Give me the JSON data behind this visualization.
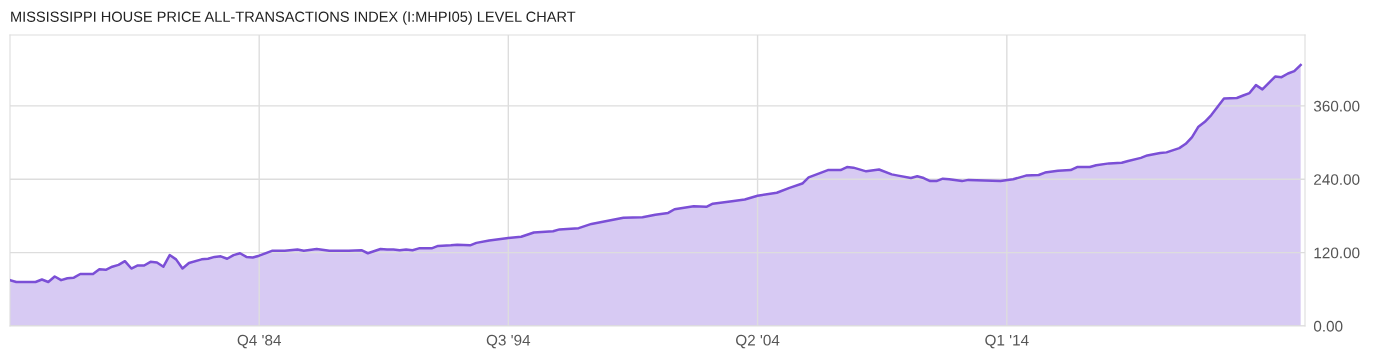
{
  "chart_data": {
    "type": "area",
    "title": "MISSISSIPPI HOUSE PRICE ALL-TRANSACTIONS INDEX (I:MHPI05) LEVEL CHART",
    "series": [
      {
        "color": "#7b4fd6",
        "x": [
          "1975-01",
          "1975-04",
          "1976-01",
          "1976-04",
          "1976-07",
          "1976-10",
          "1977-01",
          "1977-04",
          "1977-07",
          "1977-10",
          "1978-04",
          "1978-07",
          "1978-10",
          "1979-01",
          "1979-04",
          "1979-07",
          "1979-10",
          "1980-01",
          "1980-04",
          "1980-07",
          "1980-10",
          "1981-01",
          "1981-04",
          "1981-07",
          "1981-10",
          "1982-01",
          "1982-07",
          "1982-10",
          "1983-01",
          "1983-04",
          "1983-07",
          "1983-10",
          "1984-01",
          "1984-04",
          "1984-07",
          "1984-10",
          "1985-04",
          "1985-10",
          "1986-04",
          "1986-07",
          "1987-01",
          "1987-07",
          "1988-04",
          "1988-10",
          "1989-01",
          "1989-07",
          "1989-10",
          "1990-01",
          "1990-04",
          "1990-07",
          "1990-10",
          "1991-01",
          "1991-07",
          "1991-10",
          "1992-04",
          "1992-07",
          "1993-01",
          "1993-04",
          "1993-10",
          "1994-07",
          "1995-01",
          "1995-07",
          "1996-04",
          "1996-07",
          "1997-04",
          "1997-10",
          "1998-04",
          "1999-01",
          "1999-10",
          "2000-04",
          "2000-10",
          "2001-01",
          "2001-10",
          "2002-04",
          "2002-07",
          "2003-04",
          "2003-10",
          "2004-04",
          "2005-01",
          "2005-07",
          "2006-01",
          "2006-04",
          "2007-01",
          "2007-07",
          "2007-10",
          "2008-01",
          "2008-07",
          "2009-01",
          "2009-07",
          "2009-10",
          "2010-04",
          "2010-07",
          "2010-10",
          "2011-01",
          "2011-04",
          "2011-07",
          "2011-10",
          "2012-04",
          "2012-07",
          "2013-10",
          "2014-04",
          "2014-10",
          "2015-04",
          "2015-07",
          "2016-01",
          "2016-07",
          "2016-10",
          "2017-04",
          "2017-07",
          "2018-01",
          "2018-07",
          "2018-10",
          "2019-04",
          "2019-07",
          "2020-01",
          "2020-04",
          "2020-10",
          "2021-01",
          "2021-04",
          "2021-07",
          "2021-10",
          "2022-01",
          "2022-07",
          "2023-01",
          "2023-04",
          "2023-07",
          "2023-10",
          "2024-01",
          "2024-07",
          "2024-10",
          "2025-01",
          "2025-04",
          "2025-07"
        ],
        "values": [
          75,
          72,
          72,
          76,
          72,
          81,
          75,
          78,
          79,
          85,
          85,
          93,
          92,
          97,
          100,
          106,
          94,
          99,
          99,
          105,
          104,
          97,
          116,
          109,
          94,
          103,
          109,
          110,
          113,
          114,
          110,
          116,
          119,
          113,
          112,
          115,
          123,
          123,
          125,
          123,
          126,
          123,
          123,
          124,
          119,
          126,
          125,
          125,
          124,
          125,
          124,
          127,
          127,
          131,
          132,
          133,
          132,
          136,
          140,
          144,
          146,
          153,
          155,
          158,
          160,
          167,
          171,
          177,
          178,
          182,
          185,
          191,
          196,
          195,
          200,
          204,
          207,
          213,
          218,
          226,
          233,
          243,
          255,
          255,
          260,
          259,
          253,
          256,
          248,
          246,
          242,
          245,
          242,
          237,
          237,
          241,
          240,
          237,
          239,
          237,
          240,
          246,
          247,
          251,
          254,
          255,
          260,
          260,
          263,
          266,
          267,
          270,
          275,
          279,
          283,
          284,
          291,
          298,
          309,
          326,
          334,
          345,
          372,
          373,
          377,
          381,
          394,
          387,
          408,
          407,
          413,
          417,
          427
        ]
      }
    ],
    "xlim": [
      "1975-01",
      "2025-09"
    ],
    "xticks": [
      {
        "value": "1984-10",
        "label": "Q4 '84"
      },
      {
        "value": "1994-07",
        "label": "Q3 '94"
      },
      {
        "value": "2004-04",
        "label": "Q2 '04"
      },
      {
        "value": "2014-01",
        "label": "Q1 '14"
      }
    ],
    "ylim": [
      0,
      476
    ],
    "yticks": [
      {
        "value": 0,
        "label": "0.00"
      },
      {
        "value": 120,
        "label": "120.00"
      },
      {
        "value": 240,
        "label": "240.00"
      },
      {
        "value": 360,
        "label": "360.00"
      }
    ],
    "grid": true,
    "legend": false
  }
}
